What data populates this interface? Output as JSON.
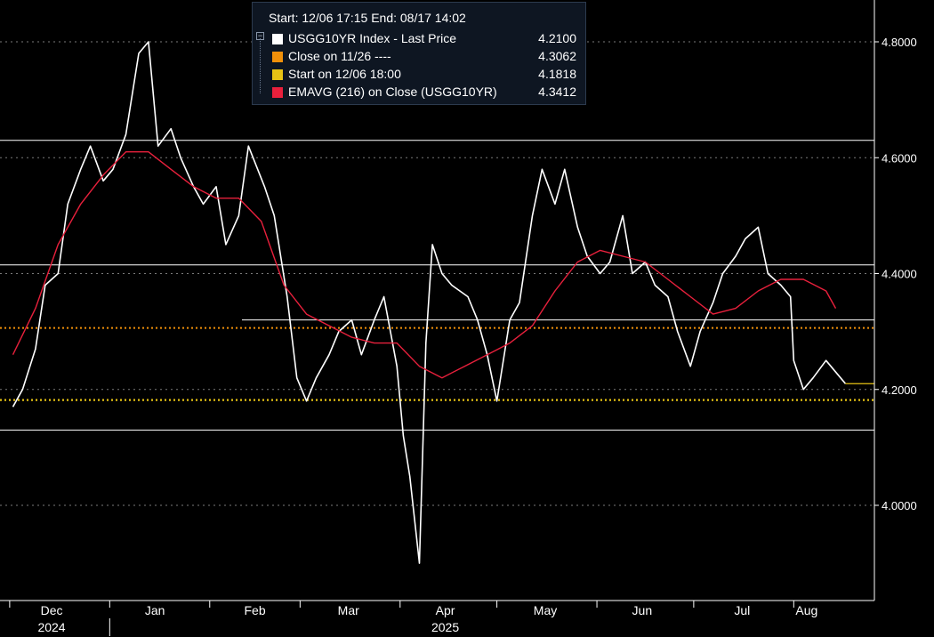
{
  "legend": {
    "header": "Start: 12/06 17:15 End: 08/17 14:02",
    "items": [
      {
        "label": "USGG10YR Index - Last Price",
        "value": "4.2100",
        "color": "#ffffff"
      },
      {
        "label": "Close on 11/26 ----",
        "value": "4.3062",
        "color": "#f0900a"
      },
      {
        "label": "Start on 12/06 18:00",
        "value": "4.1818",
        "color": "#e6c214"
      },
      {
        "label": "EMAVG (216)  on Close (USGG10YR)",
        "value": "4.3412",
        "color": "#e8203c"
      }
    ]
  },
  "chart_data": {
    "type": "line",
    "ylim": [
      3.85,
      4.85
    ],
    "y_ticks": [
      4.0,
      4.2,
      4.4,
      4.6,
      4.8
    ],
    "y_tick_labels": [
      "4.0000",
      "4.2000",
      "4.4000",
      "4.6000",
      "4.8000"
    ],
    "x_months": [
      {
        "label": "Dec",
        "year": "2024"
      },
      {
        "label": "Jan"
      },
      {
        "label": "Feb"
      },
      {
        "label": "Mar"
      },
      {
        "label": "Apr",
        "year": "2025"
      },
      {
        "label": "May"
      },
      {
        "label": "Jun"
      },
      {
        "label": "Jul"
      },
      {
        "label": "Aug"
      }
    ],
    "reference_lines": [
      {
        "type": "close",
        "value": 4.3062,
        "color": "#f0900a"
      },
      {
        "type": "start",
        "value": 4.1818,
        "color": "#e6c214"
      },
      {
        "type": "level",
        "value": 4.63,
        "color": "#ffffff"
      },
      {
        "type": "level",
        "value": 4.415,
        "color": "#ffffff"
      },
      {
        "type": "level",
        "value": 4.32,
        "color": "#ffffff"
      },
      {
        "type": "level",
        "value": 4.13,
        "color": "#ffffff"
      }
    ],
    "series": [
      {
        "name": "USGG10YR Index - Last Price",
        "color": "#ffffff",
        "x": [
          "2024-12-02",
          "2024-12-05",
          "2024-12-09",
          "2024-12-12",
          "2024-12-16",
          "2024-12-19",
          "2024-12-23",
          "2024-12-26",
          "2024-12-30",
          "2025-01-02",
          "2025-01-06",
          "2025-01-10",
          "2025-01-13",
          "2025-01-16",
          "2025-01-20",
          "2025-01-23",
          "2025-01-27",
          "2025-01-30",
          "2025-02-03",
          "2025-02-06",
          "2025-02-10",
          "2025-02-13",
          "2025-02-18",
          "2025-02-21",
          "2025-02-25",
          "2025-02-28",
          "2025-03-03",
          "2025-03-06",
          "2025-03-10",
          "2025-03-13",
          "2025-03-17",
          "2025-03-20",
          "2025-03-24",
          "2025-03-27",
          "2025-03-31",
          "2025-04-02",
          "2025-04-04",
          "2025-04-07",
          "2025-04-09",
          "2025-04-11",
          "2025-04-14",
          "2025-04-17",
          "2025-04-22",
          "2025-04-25",
          "2025-04-28",
          "2025-05-01",
          "2025-05-05",
          "2025-05-08",
          "2025-05-12",
          "2025-05-15",
          "2025-05-19",
          "2025-05-22",
          "2025-05-26",
          "2025-05-29",
          "2025-06-02",
          "2025-06-05",
          "2025-06-09",
          "2025-06-12",
          "2025-06-16",
          "2025-06-19",
          "2025-06-23",
          "2025-06-26",
          "2025-06-30",
          "2025-07-03",
          "2025-07-07",
          "2025-07-10",
          "2025-07-14",
          "2025-07-17",
          "2025-07-21",
          "2025-07-24",
          "2025-07-28",
          "2025-07-31",
          "2025-08-01",
          "2025-08-04",
          "2025-08-07",
          "2025-08-11",
          "2025-08-14",
          "2025-08-17"
        ],
        "values": [
          4.17,
          4.2,
          4.27,
          4.38,
          4.4,
          4.52,
          4.58,
          4.62,
          4.56,
          4.58,
          4.64,
          4.78,
          4.8,
          4.62,
          4.65,
          4.6,
          4.55,
          4.52,
          4.55,
          4.45,
          4.5,
          4.62,
          4.55,
          4.5,
          4.36,
          4.22,
          4.18,
          4.22,
          4.26,
          4.3,
          4.32,
          4.26,
          4.32,
          4.36,
          4.24,
          4.12,
          4.05,
          3.9,
          4.28,
          4.45,
          4.4,
          4.38,
          4.36,
          4.32,
          4.26,
          4.18,
          4.32,
          4.35,
          4.5,
          4.58,
          4.52,
          4.58,
          4.48,
          4.43,
          4.4,
          4.42,
          4.5,
          4.4,
          4.42,
          4.38,
          4.36,
          4.3,
          4.24,
          4.3,
          4.35,
          4.4,
          4.43,
          4.46,
          4.48,
          4.4,
          4.38,
          4.36,
          4.25,
          4.2,
          4.22,
          4.25,
          4.23,
          4.21
        ]
      },
      {
        "name": "EMAVG (216)  on Close (USGG10YR)",
        "color": "#e8203c",
        "x": [
          "2024-12-02",
          "2024-12-09",
          "2024-12-16",
          "2024-12-23",
          "2024-12-30",
          "2025-01-06",
          "2025-01-13",
          "2025-01-20",
          "2025-01-27",
          "2025-02-03",
          "2025-02-10",
          "2025-02-17",
          "2025-02-24",
          "2025-03-03",
          "2025-03-10",
          "2025-03-17",
          "2025-03-24",
          "2025-03-31",
          "2025-04-07",
          "2025-04-14",
          "2025-04-21",
          "2025-04-28",
          "2025-05-05",
          "2025-05-12",
          "2025-05-19",
          "2025-05-26",
          "2025-06-02",
          "2025-06-09",
          "2025-06-16",
          "2025-06-23",
          "2025-06-30",
          "2025-07-07",
          "2025-07-14",
          "2025-07-21",
          "2025-07-28",
          "2025-08-04",
          "2025-08-11",
          "2025-08-14"
        ],
        "values": [
          4.26,
          4.34,
          4.45,
          4.52,
          4.57,
          4.61,
          4.61,
          4.58,
          4.55,
          4.53,
          4.53,
          4.49,
          4.38,
          4.33,
          4.31,
          4.29,
          4.28,
          4.28,
          4.24,
          4.22,
          4.24,
          4.26,
          4.28,
          4.31,
          4.37,
          4.42,
          4.44,
          4.43,
          4.42,
          4.39,
          4.36,
          4.33,
          4.34,
          4.37,
          4.39,
          4.39,
          4.37,
          4.34
        ]
      }
    ]
  }
}
